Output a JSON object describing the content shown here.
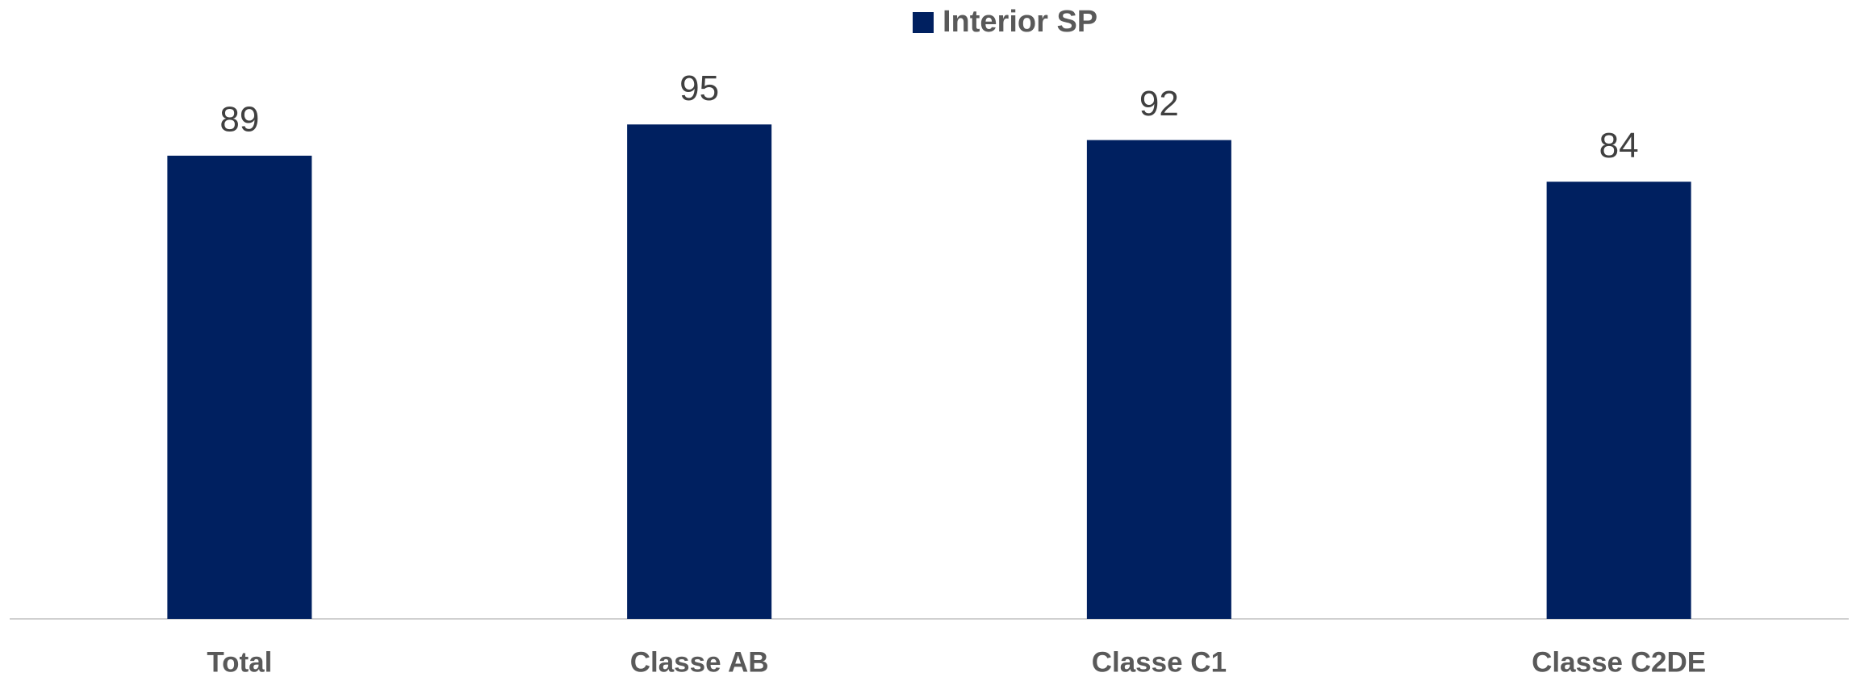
{
  "chart_data": {
    "type": "bar",
    "categories": [
      "Total",
      "Classe AB",
      "Classe C1",
      "Classe C2DE"
    ],
    "series": [
      {
        "name": "Interior SP",
        "color": "#002060",
        "values": [
          89,
          95,
          92,
          84
        ]
      }
    ],
    "legend": "top"
  }
}
